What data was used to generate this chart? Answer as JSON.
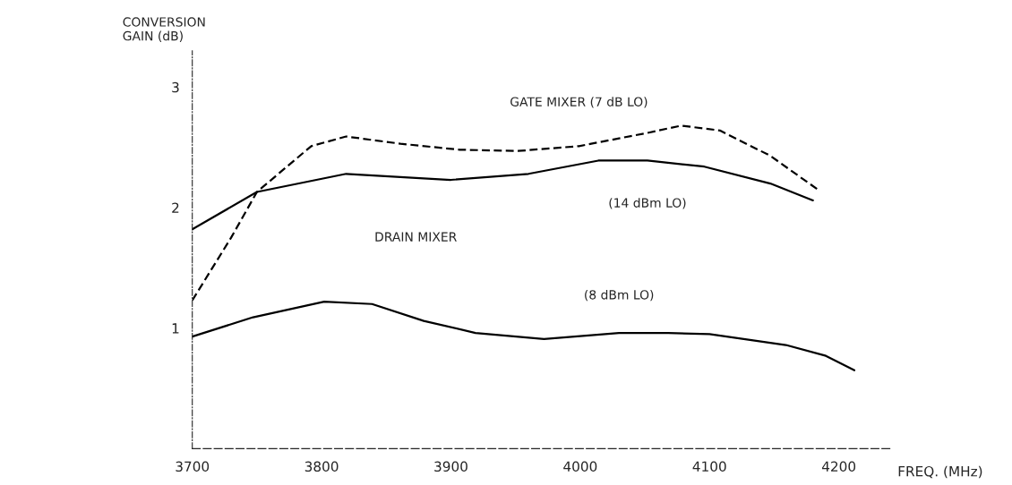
{
  "chart_data": {
    "type": "line",
    "xlabel": "FREQ. (MHz)",
    "ylabel": "CONVERSION\nGAIN (dB)",
    "xlim": [
      3700,
      4240
    ],
    "xticks": [
      3700,
      3800,
      3900,
      4000,
      4100,
      4200
    ],
    "ylim": [
      0,
      3.3
    ],
    "yticks": [
      1,
      2,
      3
    ],
    "grid": false,
    "marker": "none",
    "series": [
      {
        "name": "GATE MIXER (7 dB LO)",
        "color": "#000000",
        "line_style": "dashed",
        "x": [
          3700,
          3730,
          3750,
          3792,
          3819,
          3861,
          3907,
          3952,
          3999,
          4052,
          4078,
          4108,
          4147,
          4185
        ],
        "values": [
          1.23,
          1.75,
          2.13,
          2.51,
          2.59,
          2.53,
          2.48,
          2.47,
          2.51,
          2.62,
          2.68,
          2.64,
          2.43,
          2.14
        ]
      },
      {
        "name": "(14 dBm LO)",
        "color": "#000000",
        "line_style": "solid",
        "x": [
          3700,
          3750,
          3819,
          3900,
          3960,
          4014,
          4052,
          4096,
          4147,
          4180
        ],
        "values": [
          1.82,
          2.13,
          2.28,
          2.23,
          2.28,
          2.39,
          2.39,
          2.34,
          2.2,
          2.06
        ]
      },
      {
        "name": "(8 dBm LO)",
        "color": "#000000",
        "line_style": "solid",
        "x": [
          3700,
          3747,
          3802,
          3839,
          3879,
          3919,
          3972,
          4030,
          4068,
          4100,
          4159,
          4190,
          4212
        ],
        "values": [
          0.93,
          1.09,
          1.22,
          1.2,
          1.06,
          0.96,
          0.91,
          0.96,
          0.96,
          0.95,
          0.86,
          0.77,
          0.65
        ]
      }
    ],
    "annotations": [
      "DRAIN MIXER"
    ]
  }
}
